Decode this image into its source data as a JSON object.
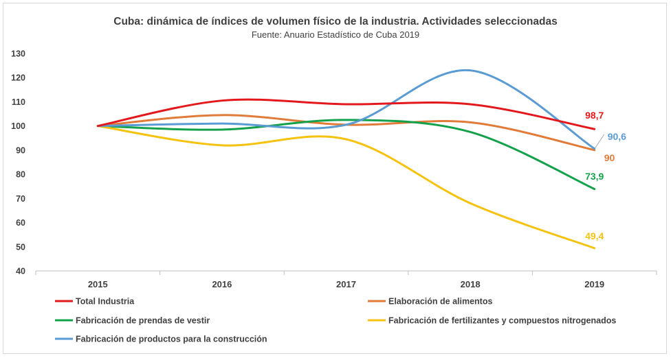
{
  "chart_data": {
    "type": "line",
    "title": "Cuba: dinámica de índices de volumen físico de la industria. Actividades seleccionadas",
    "subtitle": "Fuente: Anuario Estadístico de Cuba 2019",
    "categories": [
      "2015",
      "2016",
      "2017",
      "2018",
      "2019"
    ],
    "ylim": [
      40,
      130
    ],
    "yticks": [
      40,
      50,
      60,
      70,
      80,
      90,
      100,
      110,
      120,
      130
    ],
    "grid": false,
    "legend_position": "bottom",
    "series": [
      {
        "name": "Total Industria",
        "color": "#e3181c",
        "values": [
          100,
          110.5,
          109,
          109,
          98.7
        ],
        "end_label": "98,7"
      },
      {
        "name": "Elaboración de alimentos",
        "color": "#e07b39",
        "values": [
          100,
          104.5,
          100.5,
          101.5,
          90
        ],
        "end_label": "90"
      },
      {
        "name": "Fabricación de prendas de vestir",
        "color": "#14a14b",
        "values": [
          100,
          98.5,
          102.5,
          97.5,
          73.9
        ],
        "end_label": "73,9"
      },
      {
        "name": "Fabricación de fertilizantes y compuestos nitrogenados",
        "color": "#f5c210",
        "values": [
          100,
          92,
          94.5,
          68,
          49.4
        ],
        "end_label": "49,4"
      },
      {
        "name": "Fabricación de productos para la construcción",
        "color": "#5a9bd3",
        "values": [
          100,
          101,
          100.5,
          123,
          90.6
        ],
        "end_label": "90,6"
      }
    ]
  }
}
